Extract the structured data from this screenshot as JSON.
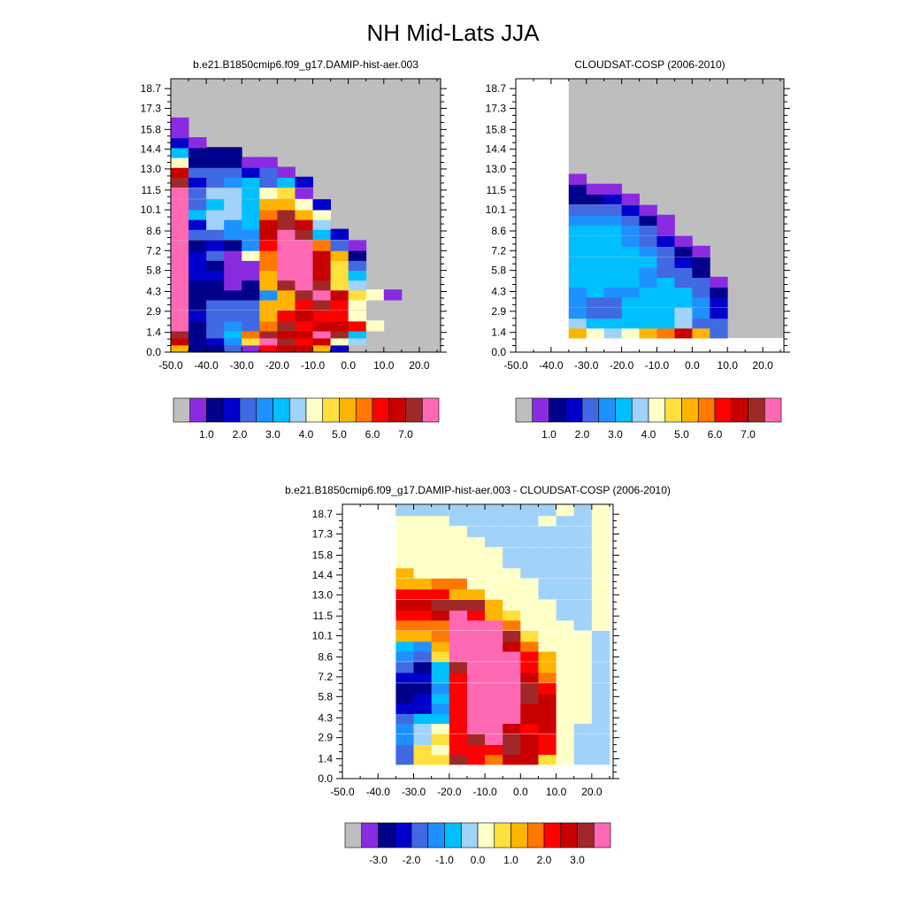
{
  "title": "NH Mid-Lats JJA",
  "palette": {
    "missing": "#bebebe",
    "colors": [
      "#8a2be2",
      "#00008b",
      "#0000cd",
      "#4169e1",
      "#1e90ff",
      "#00bfff",
      "#a0d2fa",
      "#ffffc8",
      "#ffe03c",
      "#ffb400",
      "#ff7800",
      "#ff0000",
      "#c80000",
      "#a02828",
      "#ff69b4"
    ]
  },
  "chart_data": [
    {
      "type": "heatmap",
      "title": "b.e21.B1850cmip6.f09_g17.DAMIP-hist-aer.003",
      "x_ticks": [
        "-50.0",
        "-40.0",
        "-30.0",
        "-20.0",
        "-10.0",
        "0.0",
        "10.0",
        "20.0"
      ],
      "y_ticks": [
        "0.0",
        "1.4",
        "2.9",
        "4.3",
        "5.8",
        "7.2",
        "8.6",
        "10.1",
        "11.5",
        "13.0",
        "14.4",
        "15.8",
        "17.3",
        "18.7"
      ],
      "xlim": [
        -50,
        26
      ],
      "ylim": [
        0,
        19.4
      ],
      "cell_width_x": 5,
      "cell_height_y": 0.75,
      "background": "missing",
      "colorbar": {
        "labels": [
          "1.0",
          "2.0",
          "3.0",
          "4.0",
          "5.0",
          "6.0",
          "7.0"
        ]
      },
      "rows": [
        {
          "y0": 0.0,
          "x0": -50,
          "cells": [
            9,
            1,
            1,
            3,
            0,
            11,
            12,
            12,
            9,
            2
          ]
        },
        {
          "y0": 0.5,
          "x0": -50,
          "cells": [
            12,
            1,
            2,
            4,
            8,
            14,
            13,
            11,
            12,
            7,
            6
          ]
        },
        {
          "y0": 1.0,
          "x0": -50,
          "cells": [
            13,
            1,
            3,
            5,
            10,
            13,
            12,
            12,
            14,
            13,
            5
          ]
        },
        {
          "y0": 1.5,
          "x0": -50,
          "cells": [
            14,
            1,
            3,
            4,
            3,
            10,
            13,
            11,
            12,
            12,
            11,
            7
          ]
        },
        {
          "y0": 2.2,
          "x0": -50,
          "cells": [
            14,
            2,
            3,
            3,
            3,
            9,
            11,
            12,
            11,
            11,
            7
          ]
        },
        {
          "y0": 3.0,
          "x0": -50,
          "cells": [
            14,
            1,
            3,
            3,
            3,
            9,
            9,
            11,
            13,
            11,
            7
          ]
        },
        {
          "y0": 3.7,
          "x0": -50,
          "cells": [
            14,
            1,
            1,
            1,
            1,
            4,
            9,
            13,
            14,
            12,
            8,
            7,
            0
          ]
        },
        {
          "y0": 4.4,
          "x0": -50,
          "cells": [
            14,
            1,
            1,
            0,
            1,
            9,
            13,
            14,
            13,
            8,
            6
          ]
        },
        {
          "y0": 5.1,
          "x0": -50,
          "cells": [
            14,
            2,
            2,
            0,
            0,
            9,
            14,
            14,
            12,
            8,
            5
          ]
        },
        {
          "y0": 5.8,
          "x0": -50,
          "cells": [
            14,
            2,
            1,
            0,
            0,
            10,
            14,
            14,
            12,
            8,
            3
          ]
        },
        {
          "y0": 6.5,
          "x0": -50,
          "cells": [
            14,
            2,
            3,
            0,
            7,
            10,
            14,
            14,
            12,
            9,
            1
          ]
        },
        {
          "y0": 7.2,
          "x0": -50,
          "cells": [
            14,
            1,
            2,
            1,
            4,
            11,
            14,
            14,
            10,
            3,
            0
          ]
        },
        {
          "y0": 8.0,
          "x0": -50,
          "cells": [
            14,
            3,
            3,
            4,
            4,
            12,
            14,
            13,
            5,
            2
          ]
        },
        {
          "y0": 8.7,
          "x0": -50,
          "cells": [
            14,
            2,
            6,
            4,
            5,
            12,
            13,
            12,
            6
          ]
        },
        {
          "y0": 9.4,
          "x0": -50,
          "cells": [
            14,
            5,
            6,
            6,
            5,
            10,
            13,
            9,
            7
          ]
        },
        {
          "y0": 10.1,
          "x0": -50,
          "cells": [
            14,
            3,
            5,
            6,
            5,
            9,
            9,
            7,
            2
          ]
        },
        {
          "y0": 10.9,
          "x0": -50,
          "cells": [
            14,
            3,
            6,
            6,
            5,
            7,
            8,
            0
          ]
        },
        {
          "y0": 11.7,
          "x0": -50,
          "cells": [
            13,
            2,
            3,
            4,
            5,
            3,
            5,
            2
          ]
        },
        {
          "y0": 12.4,
          "x0": -50,
          "cells": [
            12,
            3,
            3,
            3,
            2,
            3,
            0
          ]
        },
        {
          "y0": 13.1,
          "x0": -50,
          "cells": [
            7,
            1,
            1,
            1,
            0,
            0
          ]
        },
        {
          "y0": 13.8,
          "x0": -50,
          "cells": [
            5,
            1,
            1,
            1
          ]
        },
        {
          "y0": 14.5,
          "x0": -50,
          "cells": [
            2,
            0
          ]
        },
        {
          "y0": 15.2,
          "x0": -50,
          "cells": [
            0
          ]
        },
        {
          "y0": 15.9,
          "x0": -50,
          "cells": [
            0
          ]
        }
      ]
    },
    {
      "type": "heatmap",
      "title": "CLOUDSAT-COSP (2006-2010)",
      "x_ticks": [
        "-50.0",
        "-40.0",
        "-30.0",
        "-20.0",
        "-10.0",
        "0.0",
        "10.0",
        "20.0"
      ],
      "y_ticks": [
        "0.0",
        "1.4",
        "2.9",
        "4.3",
        "5.8",
        "7.2",
        "8.6",
        "10.1",
        "11.5",
        "13.0",
        "14.4",
        "15.8",
        "17.3",
        "18.7"
      ],
      "xlim": [
        -50,
        26
      ],
      "ylim": [
        0,
        19.4
      ],
      "cell_width_x": 5,
      "cell_height_y": 0.75,
      "background": "missing",
      "blank_regions": [
        [
          -50,
          -35,
          0,
          19.4
        ],
        [
          -35,
          26,
          0,
          1.0
        ]
      ],
      "colorbar": {
        "labels": [
          "1.0",
          "2.0",
          "3.0",
          "4.0",
          "5.0",
          "6.0",
          "7.0"
        ]
      },
      "rows": [
        {
          "y0": 1.0,
          "x0": -35,
          "cells": [
            9,
            7,
            6,
            7,
            9,
            10,
            12,
            9,
            3
          ]
        },
        {
          "y0": 1.7,
          "x0": -35,
          "cells": [
            6,
            5,
            5,
            5,
            5,
            5,
            6,
            3,
            3
          ]
        },
        {
          "y0": 2.4,
          "x0": -35,
          "cells": [
            4,
            3,
            3,
            5,
            5,
            5,
            6,
            4,
            2
          ]
        },
        {
          "y0": 3.2,
          "x0": -35,
          "cells": [
            4,
            3,
            3,
            5,
            5,
            5,
            5,
            4,
            2
          ]
        },
        {
          "y0": 3.9,
          "x0": -35,
          "cells": [
            4,
            5,
            4,
            4,
            5,
            5,
            5,
            3,
            1
          ]
        },
        {
          "y0": 4.6,
          "x0": -35,
          "cells": [
            5,
            5,
            5,
            5,
            4,
            5,
            3,
            3,
            0
          ]
        },
        {
          "y0": 5.3,
          "x0": -35,
          "cells": [
            5,
            5,
            5,
            5,
            4,
            3,
            3,
            1
          ]
        },
        {
          "y0": 6.0,
          "x0": -35,
          "cells": [
            5,
            5,
            5,
            5,
            5,
            3,
            2,
            1
          ]
        },
        {
          "y0": 6.8,
          "x0": -35,
          "cells": [
            5,
            5,
            5,
            5,
            4,
            3,
            1,
            0
          ]
        },
        {
          "y0": 7.5,
          "x0": -35,
          "cells": [
            5,
            5,
            5,
            4,
            3,
            2,
            0
          ]
        },
        {
          "y0": 8.3,
          "x0": -35,
          "cells": [
            5,
            5,
            5,
            4,
            3,
            0
          ]
        },
        {
          "y0": 9.0,
          "x0": -35,
          "cells": [
            4,
            4,
            4,
            3,
            1,
            0
          ]
        },
        {
          "y0": 9.7,
          "x0": -35,
          "cells": [
            3,
            3,
            3,
            2,
            0
          ]
        },
        {
          "y0": 10.5,
          "x0": -35,
          "cells": [
            1,
            1,
            2,
            0
          ]
        },
        {
          "y0": 11.2,
          "x0": -35,
          "cells": [
            1,
            0,
            0
          ]
        },
        {
          "y0": 11.9,
          "x0": -35,
          "cells": [
            0
          ]
        }
      ]
    },
    {
      "type": "heatmap",
      "title": "b.e21.B1850cmip6.f09_g17.DAMIP-hist-aer.003 - CLOUDSAT-COSP (2006-2010)",
      "x_ticks": [
        "-50.0",
        "-40.0",
        "-30.0",
        "-20.0",
        "-10.0",
        "0.0",
        "10.0",
        "20.0"
      ],
      "y_ticks": [
        "0.0",
        "1.4",
        "2.9",
        "4.3",
        "5.8",
        "7.2",
        "8.6",
        "10.1",
        "11.5",
        "13.0",
        "14.4",
        "15.8",
        "17.3",
        "18.7"
      ],
      "xlim": [
        -50,
        26
      ],
      "ylim": [
        0,
        19.4
      ],
      "cell_width_x": 5,
      "cell_height_y": 0.75,
      "background": "blank",
      "colorbar": {
        "labels": [
          "-3.0",
          "-2.0",
          "-1.0",
          "0.0",
          "1.0",
          "2.0",
          "3.0"
        ]
      },
      "rows": [
        {
          "y0": 1.0,
          "x0": -35,
          "cells": [
            3,
            8,
            8,
            13,
            11,
            10,
            12,
            12,
            8,
            7,
            6,
            6
          ]
        },
        {
          "y0": 1.7,
          "x0": -35,
          "cells": [
            3,
            8,
            7,
            11,
            11,
            11,
            13,
            12,
            11,
            7,
            6,
            6
          ]
        },
        {
          "y0": 2.4,
          "x0": -35,
          "cells": [
            4,
            6,
            8,
            11,
            13,
            14,
            13,
            12,
            11,
            7,
            6,
            6
          ]
        },
        {
          "y0": 3.2,
          "x0": -35,
          "cells": [
            4,
            6,
            7,
            11,
            14,
            14,
            12,
            11,
            12,
            7,
            6,
            6
          ]
        },
        {
          "y0": 3.9,
          "x0": -35,
          "cells": [
            3,
            5,
            5,
            11,
            14,
            14,
            14,
            12,
            12,
            7,
            7,
            6
          ]
        },
        {
          "y0": 4.6,
          "x0": -35,
          "cells": [
            2,
            2,
            4,
            11,
            14,
            14,
            14,
            12,
            12,
            7,
            7,
            6
          ]
        },
        {
          "y0": 5.3,
          "x0": -35,
          "cells": [
            1,
            2,
            5,
            11,
            14,
            14,
            14,
            13,
            12,
            7,
            7,
            6
          ]
        },
        {
          "y0": 6.0,
          "x0": -35,
          "cells": [
            1,
            1,
            4,
            11,
            14,
            14,
            14,
            13,
            11,
            7,
            7,
            6
          ]
        },
        {
          "y0": 6.8,
          "x0": -35,
          "cells": [
            2,
            2,
            5,
            11,
            14,
            14,
            14,
            12,
            10,
            7,
            7,
            6
          ]
        },
        {
          "y0": 7.5,
          "x0": -35,
          "cells": [
            3,
            1,
            5,
            13,
            14,
            14,
            14,
            11,
            9,
            7,
            7,
            6
          ]
        },
        {
          "y0": 8.3,
          "x0": -35,
          "cells": [
            4,
            3,
            8,
            14,
            14,
            14,
            14,
            11,
            9,
            7,
            7,
            6
          ]
        },
        {
          "y0": 9.0,
          "x0": -35,
          "cells": [
            5,
            4,
            9,
            14,
            14,
            14,
            12,
            10,
            7,
            7,
            7,
            6
          ]
        },
        {
          "y0": 9.7,
          "x0": -35,
          "cells": [
            9,
            9,
            10,
            14,
            14,
            14,
            13,
            8,
            7,
            7,
            7,
            6
          ]
        },
        {
          "y0": 10.5,
          "x0": -35,
          "cells": [
            10,
            10,
            10,
            14,
            14,
            14,
            10,
            7,
            7,
            7,
            6,
            7
          ]
        },
        {
          "y0": 11.2,
          "x0": -35,
          "cells": [
            11,
            11,
            12,
            14,
            11,
            9,
            8,
            7,
            7,
            6,
            6,
            7
          ]
        },
        {
          "y0": 11.9,
          "x0": -35,
          "cells": [
            12,
            12,
            13,
            13,
            13,
            9,
            7,
            7,
            7,
            6,
            6,
            7
          ]
        },
        {
          "y0": 12.7,
          "x0": -35,
          "cells": [
            11,
            11,
            11,
            9,
            9,
            7,
            7,
            7,
            6,
            6,
            6,
            7
          ]
        },
        {
          "y0": 13.4,
          "x0": -35,
          "cells": [
            9,
            9,
            10,
            10,
            7,
            7,
            7,
            7,
            6,
            6,
            6,
            7
          ]
        },
        {
          "y0": 14.2,
          "x0": -35,
          "cells": [
            9,
            7,
            7,
            7,
            7,
            7,
            7,
            6,
            6,
            6,
            6,
            7
          ]
        },
        {
          "y0": 14.9,
          "x0": -35,
          "cells": [
            7,
            7,
            7,
            7,
            7,
            7,
            6,
            6,
            6,
            6,
            6,
            7
          ]
        },
        {
          "y0": 15.6,
          "x0": -35,
          "cells": [
            7,
            7,
            7,
            7,
            7,
            7,
            6,
            6,
            6,
            6,
            6,
            7
          ]
        },
        {
          "y0": 16.4,
          "x0": -35,
          "cells": [
            7,
            7,
            7,
            7,
            7,
            6,
            6,
            6,
            6,
            6,
            6,
            7
          ]
        },
        {
          "y0": 17.1,
          "x0": -35,
          "cells": [
            7,
            7,
            7,
            7,
            6,
            6,
            6,
            6,
            6,
            6,
            6,
            7
          ]
        },
        {
          "y0": 17.9,
          "x0": -35,
          "cells": [
            7,
            7,
            7,
            6,
            6,
            6,
            6,
            6,
            7,
            6,
            6,
            7
          ]
        },
        {
          "y0": 18.6,
          "x0": -35,
          "cells": [
            6,
            6,
            6,
            6,
            6,
            6,
            6,
            6,
            6,
            7,
            6,
            7
          ]
        }
      ]
    }
  ]
}
